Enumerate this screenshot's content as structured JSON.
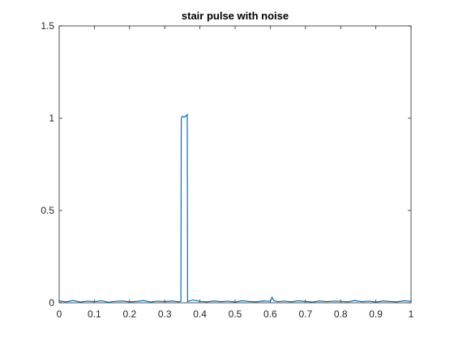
{
  "chart_data": {
    "type": "line",
    "title": "stair pulse with noise",
    "xlabel": "",
    "ylabel": "",
    "xlim": [
      0,
      1
    ],
    "ylim": [
      0,
      1.5
    ],
    "grid": false,
    "x_ticks": [
      0,
      0.1,
      0.2,
      0.3,
      0.4,
      0.5,
      0.6,
      0.7,
      0.8,
      0.9,
      1
    ],
    "x_tick_labels": [
      "0",
      "0.1",
      "0.2",
      "0.3",
      "0.4",
      "0.5",
      "0.6",
      "0.7",
      "0.8",
      "0.9",
      "1"
    ],
    "y_ticks": [
      0,
      0.5,
      1,
      1.5
    ],
    "y_tick_labels": [
      "0",
      "0.5",
      "1",
      "1.5"
    ],
    "series_color": "#0072BD",
    "series": [
      {
        "x": [
          0,
          0.02,
          0.04,
          0.06,
          0.08,
          0.1,
          0.12,
          0.14,
          0.16,
          0.18,
          0.2,
          0.22,
          0.24,
          0.26,
          0.28,
          0.3,
          0.32,
          0.34,
          0.346,
          0.347,
          0.35,
          0.355,
          0.36,
          0.364,
          0.365,
          0.37,
          0.38,
          0.4,
          0.42,
          0.44,
          0.46,
          0.48,
          0.5,
          0.52,
          0.54,
          0.56,
          0.58,
          0.6,
          0.605,
          0.61,
          0.62,
          0.64,
          0.66,
          0.68,
          0.7,
          0.72,
          0.74,
          0.76,
          0.78,
          0.8,
          0.82,
          0.84,
          0.86,
          0.88,
          0.9,
          0.92,
          0.94,
          0.96,
          0.98,
          1
        ],
        "y": [
          0.01,
          0.005,
          0.012,
          0.004,
          0.009,
          0.006,
          0.011,
          0.003,
          0.008,
          0.01,
          0.005,
          0.007,
          0.012,
          0.004,
          0.009,
          0.006,
          0.01,
          0.005,
          0.008,
          1.0,
          1.01,
          1.005,
          1.012,
          1.02,
          0.006,
          0.01,
          0.015,
          0.008,
          0.005,
          0.01,
          0.006,
          0.009,
          0.004,
          0.011,
          0.007,
          0.005,
          0.01,
          0.008,
          0.03,
          0.012,
          0.006,
          0.009,
          0.005,
          0.011,
          0.007,
          0.004,
          0.01,
          0.006,
          0.009,
          0.008,
          0.005,
          0.012,
          0.006,
          0.009,
          0.004,
          0.01,
          0.007,
          0.005,
          0.011,
          0.008
        ]
      }
    ]
  }
}
